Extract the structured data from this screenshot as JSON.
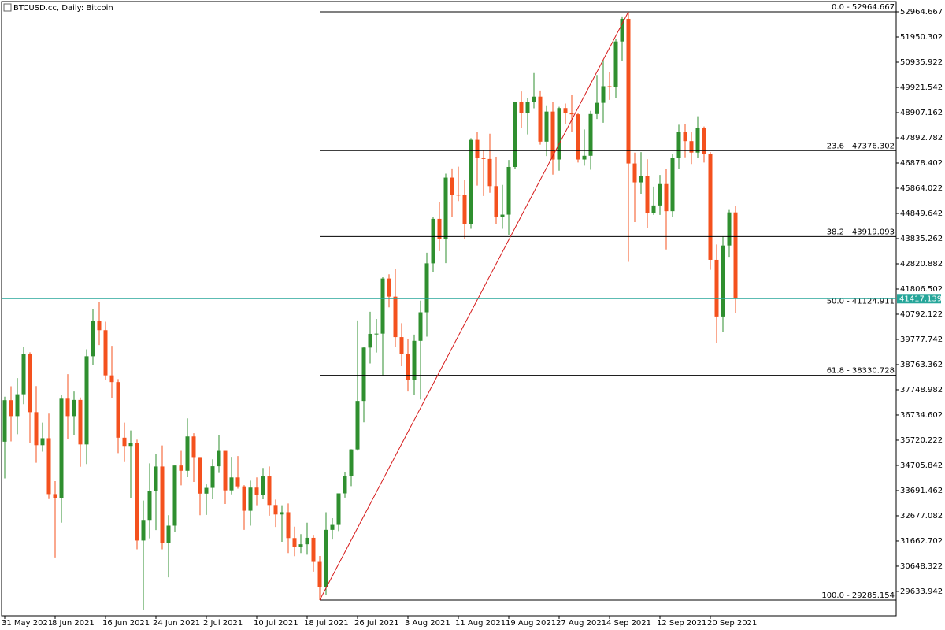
{
  "chart_data": {
    "type": "candlestick",
    "title": "BTCUSD.cc, Daily:  Bitcoin",
    "up_color": "#2f8f2f",
    "down_color": "#f4511e",
    "fib_color": "#000000",
    "trend_color": "#d61a1a",
    "price_line_color": "#26a69a",
    "categories": [
      "31 May 2021",
      null,
      null,
      null,
      null,
      null,
      null,
      null,
      "8 Jun 2021",
      null,
      null,
      null,
      null,
      null,
      null,
      null,
      "16 Jun 2021",
      null,
      null,
      null,
      null,
      null,
      null,
      null,
      "24 Jun 2021",
      null,
      null,
      null,
      null,
      null,
      null,
      null,
      "2 Jul 2021",
      null,
      null,
      null,
      null,
      null,
      null,
      null,
      "10 Jul 2021",
      null,
      null,
      null,
      null,
      null,
      null,
      null,
      "18 Jul 2021",
      null,
      null,
      null,
      null,
      null,
      null,
      null,
      "26 Jul 2021",
      null,
      null,
      null,
      null,
      null,
      null,
      null,
      "3 Aug 2021",
      null,
      null,
      null,
      null,
      null,
      null,
      null,
      "11 Aug 2021",
      null,
      null,
      null,
      null,
      null,
      null,
      null,
      "19 Aug 2021",
      null,
      null,
      null,
      null,
      null,
      null,
      null,
      "27 Aug 2021",
      null,
      null,
      null,
      null,
      null,
      null,
      null,
      "4 Sep 2021",
      null,
      null,
      null,
      null,
      null,
      null,
      null,
      "12 Sep 2021",
      null,
      null,
      null,
      null,
      null,
      null,
      null,
      "20 Sep 2021",
      null,
      null,
      null,
      null
    ],
    "open": [
      35660,
      37330,
      36690,
      37570,
      39190,
      36850,
      35520,
      35800,
      33550,
      33380,
      37390,
      36690,
      37340,
      35550,
      39100,
      40520,
      40150,
      38330,
      38060,
      35820,
      35490,
      35610,
      31680,
      32510,
      33680,
      34660,
      31590,
      32280,
      34700,
      34490,
      35870,
      35040,
      33570,
      33800,
      34670,
      35290,
      33700,
      34220,
      33860,
      32880,
      33810,
      33520,
      34260,
      33110,
      32730,
      32820,
      31780,
      31420,
      31530,
      31790,
      30820,
      29810,
      32110,
      32310,
      33580,
      34280,
      35350,
      37300,
      39450,
      40000,
      40010,
      42230,
      41500,
      39870,
      39180,
      38150,
      39720,
      40870,
      42840,
      44630,
      43810,
      46290,
      45600,
      45580,
      44430,
      47810,
      47100,
      47040,
      45950,
      44700,
      44800,
      46720,
      49340,
      48900,
      49320,
      49550,
      47740,
      48950,
      47020,
      49090,
      48900,
      48840,
      47020,
      47170,
      48850,
      49300,
      49970,
      49940,
      51770,
      52680,
      46860,
      46100,
      46370,
      44850,
      45170,
      46030,
      44940,
      47090,
      48140,
      47760,
      47300,
      48290,
      47240,
      42980,
      40700,
      43560,
      44890
    ],
    "high": [
      37470,
      37890,
      38220,
      39480,
      39260,
      37900,
      36430,
      36790,
      34070,
      37530,
      38380,
      37680,
      37440,
      39380,
      41000,
      41290,
      40490,
      39520,
      38180,
      36430,
      36110,
      35740,
      33290,
      34790,
      35160,
      35510,
      32700,
      34700,
      35290,
      36600,
      36000,
      35040,
      33940,
      34950,
      35940,
      35290,
      35050,
      35080,
      33910,
      34090,
      34220,
      34600,
      34660,
      33330,
      33100,
      33170,
      32240,
      31940,
      32400,
      31880,
      31060,
      32820,
      32580,
      33580,
      34450,
      35360,
      40540,
      39470,
      40890,
      40600,
      42280,
      42400,
      42600,
      40430,
      39780,
      39970,
      41340,
      43270,
      44700,
      45300,
      46450,
      46660,
      46730,
      46200,
      47880,
      48140,
      47370,
      48060,
      47130,
      46000,
      47000,
      49340,
      49760,
      49480,
      50500,
      49800,
      49200,
      49330,
      49140,
      49270,
      49620,
      48900,
      48230,
      48980,
      50420,
      51040,
      50530,
      51870,
      52780,
      52964.667,
      47300,
      47320,
      47030,
      45930,
      46400,
      46650,
      47240,
      48420,
      48450,
      48140,
      48760,
      48350,
      47320,
      43600,
      43920,
      44990,
      45150
    ],
    "low": [
      34180,
      35670,
      35960,
      37170,
      35600,
      34810,
      35260,
      33350,
      31000,
      32400,
      35780,
      35940,
      34650,
      34760,
      38730,
      39550,
      38140,
      37430,
      35200,
      34840,
      33380,
      31330,
      28870,
      31770,
      32100,
      31330,
      30200,
      32030,
      33900,
      34230,
      34040,
      32700,
      32710,
      33340,
      34400,
      33150,
      33540,
      33770,
      32110,
      32280,
      33100,
      33340,
      32680,
      32230,
      31630,
      31180,
      31050,
      31180,
      31110,
      30430,
      29285.154,
      29500,
      31720,
      32060,
      33410,
      33870,
      35300,
      36440,
      38810,
      39250,
      38340,
      41070,
      39460,
      38700,
      37680,
      37540,
      37360,
      39890,
      42480,
      43330,
      42850,
      44700,
      45350,
      43820,
      44230,
      45970,
      45550,
      45680,
      44420,
      44230,
      43960,
      46650,
      48300,
      48030,
      49080,
      47620,
      47160,
      46410,
      46570,
      48440,
      48120,
      46900,
      46770,
      46610,
      48650,
      48500,
      49420,
      49490,
      50990,
      42900,
      44500,
      45640,
      44250,
      44790,
      44790,
      43400,
      44710,
      46650,
      47110,
      46840,
      47080,
      46900,
      42580,
      39650,
      40090,
      43100,
      40830
    ],
    "close": [
      37330,
      36690,
      37570,
      39190,
      36850,
      35520,
      35800,
      33550,
      33380,
      37390,
      36690,
      37340,
      35550,
      39100,
      40520,
      40150,
      38330,
      38060,
      35820,
      35490,
      35610,
      31680,
      32510,
      33680,
      34660,
      31590,
      32280,
      34700,
      34490,
      35870,
      35040,
      33570,
      33800,
      34670,
      35290,
      33700,
      34220,
      33860,
      32880,
      33810,
      33520,
      34260,
      33110,
      32730,
      32820,
      31780,
      31420,
      31530,
      31790,
      30820,
      29810,
      32110,
      32310,
      33580,
      34280,
      35350,
      37300,
      39450,
      40000,
      40010,
      42230,
      41500,
      39870,
      39180,
      38150,
      39720,
      40870,
      42840,
      44630,
      43810,
      46290,
      45600,
      45580,
      44430,
      47810,
      47100,
      47040,
      45950,
      44700,
      44800,
      46720,
      49340,
      48900,
      49320,
      49550,
      47740,
      48950,
      47020,
      49090,
      48900,
      48840,
      47020,
      47170,
      48850,
      49300,
      49970,
      49940,
      51770,
      52680,
      46860,
      46100,
      46370,
      44850,
      45170,
      46030,
      44940,
      47090,
      48140,
      47760,
      47300,
      48290,
      47240,
      42980,
      40700,
      43560,
      44890,
      41417.139
    ],
    "ylim": [
      28650,
      53377
    ],
    "yticks": [
      52964.667,
      51950.302,
      50935.922,
      49921.542,
      48907.162,
      47892.782,
      46878.402,
      45864.022,
      44849.642,
      43835.262,
      42820.882,
      41806.502,
      40792.122,
      39777.742,
      38763.362,
      37748.982,
      36734.602,
      35720.222,
      34705.842,
      33691.462,
      32677.082,
      31662.702,
      30648.322,
      29633.942
    ],
    "fib": [
      {
        "label": "0.0 - 52964.667",
        "value": 52964.667
      },
      {
        "label": "23.6 - 47376.302",
        "value": 47376.302
      },
      {
        "label": "38.2 - 43919.093",
        "value": 43919.093
      },
      {
        "label": "50.0 - 41124.911",
        "value": 41124.911
      },
      {
        "label": "61.8 - 38330.728",
        "value": 38330.728
      },
      {
        "label": "100.0 - 29285.154",
        "value": 29285.154
      }
    ]
  }
}
